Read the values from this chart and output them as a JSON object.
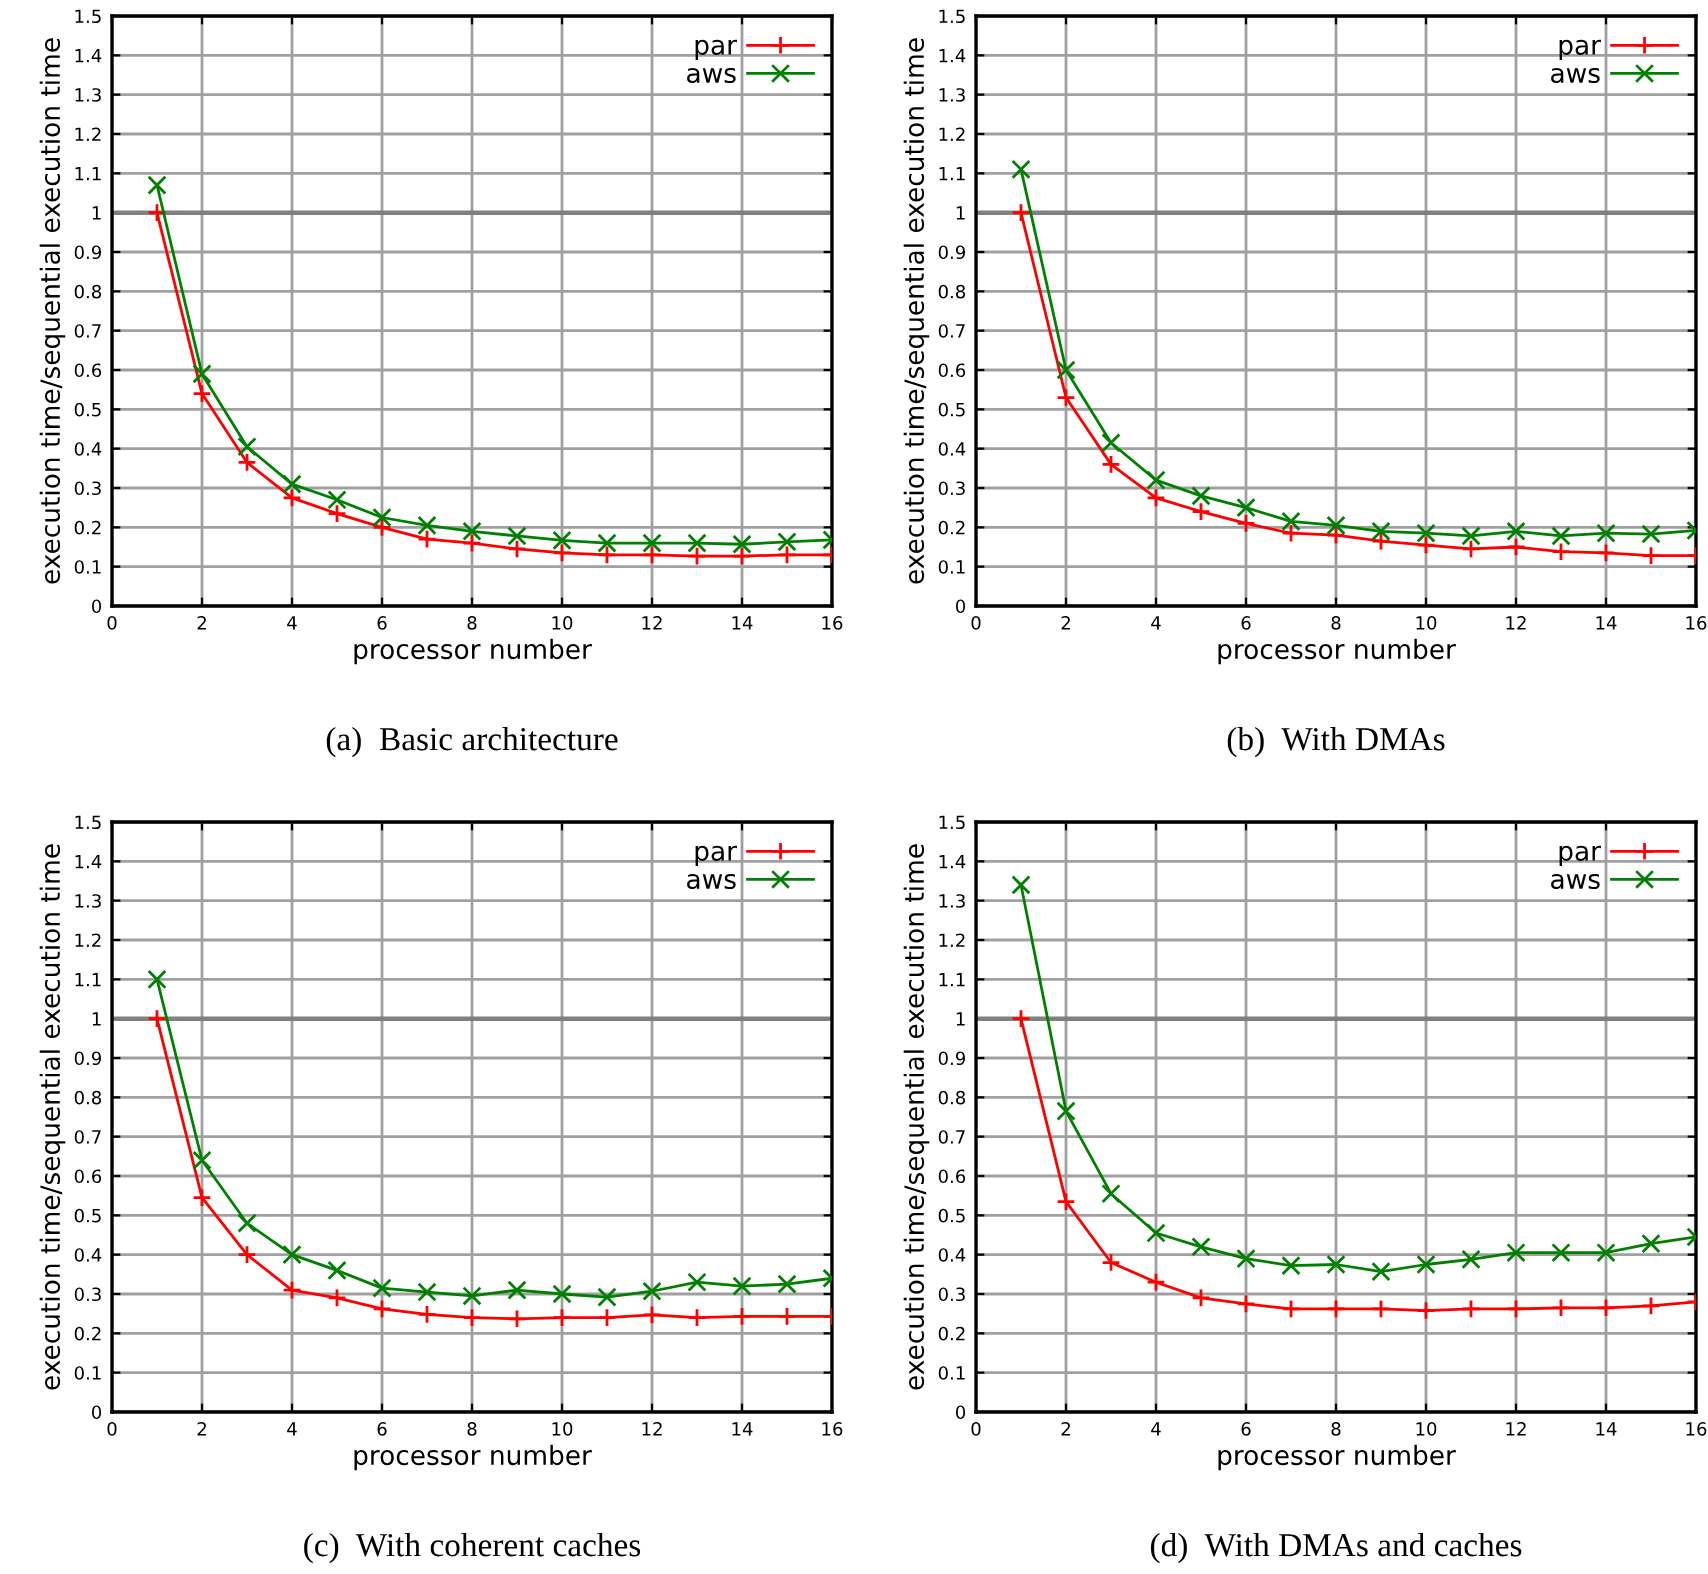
{
  "chart_data": [
    {
      "type": "line",
      "title": "(a)  Basic architecture",
      "xlabel": "processor number",
      "ylabel": "execution time/sequential execution time",
      "x": [
        1,
        2,
        3,
        4,
        5,
        6,
        7,
        8,
        9,
        10,
        11,
        12,
        13,
        14,
        15,
        16
      ],
      "series": [
        {
          "name": "par",
          "color": "#ff0000",
          "marker": "cross",
          "values": [
            1,
            0.54,
            0.365,
            0.275,
            0.235,
            0.2,
            0.17,
            0.16,
            0.145,
            0.135,
            0.13,
            0.13,
            0.127,
            0.127,
            0.13,
            0.13
          ]
        },
        {
          "name": "aws",
          "color": "#008000",
          "marker": "x",
          "values": [
            1.07,
            0.59,
            0.405,
            0.31,
            0.27,
            0.225,
            0.205,
            0.19,
            0.178,
            0.167,
            0.16,
            0.16,
            0.16,
            0.157,
            0.163,
            0.168
          ]
        }
      ],
      "xlim": [
        0,
        16
      ],
      "xticks": [
        0,
        2,
        4,
        6,
        8,
        10,
        12,
        14,
        16
      ],
      "ylim": [
        0,
        1.5
      ],
      "yticks": [
        0,
        0.1,
        0.2,
        0.3,
        0.4,
        0.5,
        0.6,
        0.7,
        0.8,
        0.9,
        1,
        1.1,
        1.2,
        1.3,
        1.4,
        1.5
      ],
      "ref_lines": [
        {
          "axis": "y",
          "value": 1,
          "color": "#808080"
        }
      ],
      "grid": true,
      "legend": "top right"
    },
    {
      "type": "line",
      "title": "(b)  With DMAs",
      "xlabel": "processor number",
      "ylabel": "execution time/sequential execution time",
      "x": [
        1,
        2,
        3,
        4,
        5,
        6,
        7,
        8,
        9,
        10,
        11,
        12,
        13,
        14,
        15,
        16
      ],
      "series": [
        {
          "name": "par",
          "color": "#ff0000",
          "marker": "cross",
          "values": [
            1,
            0.53,
            0.36,
            0.275,
            0.24,
            0.21,
            0.185,
            0.18,
            0.165,
            0.155,
            0.145,
            0.15,
            0.138,
            0.135,
            0.128,
            0.128
          ]
        },
        {
          "name": "aws",
          "color": "#008000",
          "marker": "x",
          "values": [
            1.11,
            0.6,
            0.415,
            0.32,
            0.28,
            0.25,
            0.215,
            0.205,
            0.19,
            0.185,
            0.178,
            0.19,
            0.178,
            0.185,
            0.183,
            0.192
          ]
        }
      ],
      "xlim": [
        0,
        16
      ],
      "xticks": [
        0,
        2,
        4,
        6,
        8,
        10,
        12,
        14,
        16
      ],
      "ylim": [
        0,
        1.5
      ],
      "yticks": [
        0,
        0.1,
        0.2,
        0.3,
        0.4,
        0.5,
        0.6,
        0.7,
        0.8,
        0.9,
        1,
        1.1,
        1.2,
        1.3,
        1.4,
        1.5
      ],
      "ref_lines": [
        {
          "axis": "y",
          "value": 1,
          "color": "#808080"
        }
      ],
      "grid": true,
      "legend": "top right"
    },
    {
      "type": "line",
      "title": "(c)  With coherent caches",
      "xlabel": "processor number",
      "ylabel": "execution time/sequential execution time",
      "x": [
        1,
        2,
        3,
        4,
        5,
        6,
        7,
        8,
        9,
        10,
        11,
        12,
        13,
        14,
        15,
        16
      ],
      "series": [
        {
          "name": "par",
          "color": "#ff0000",
          "marker": "cross",
          "values": [
            1,
            0.545,
            0.4,
            0.31,
            0.29,
            0.262,
            0.248,
            0.24,
            0.237,
            0.24,
            0.24,
            0.247,
            0.24,
            0.243,
            0.243,
            0.243
          ]
        },
        {
          "name": "aws",
          "color": "#008000",
          "marker": "x",
          "values": [
            1.1,
            0.64,
            0.48,
            0.4,
            0.36,
            0.315,
            0.305,
            0.295,
            0.31,
            0.3,
            0.292,
            0.307,
            0.33,
            0.32,
            0.325,
            0.34
          ]
        }
      ],
      "xlim": [
        0,
        16
      ],
      "xticks": [
        0,
        2,
        4,
        6,
        8,
        10,
        12,
        14,
        16
      ],
      "ylim": [
        0,
        1.5
      ],
      "yticks": [
        0,
        0.1,
        0.2,
        0.3,
        0.4,
        0.5,
        0.6,
        0.7,
        0.8,
        0.9,
        1,
        1.1,
        1.2,
        1.3,
        1.4,
        1.5
      ],
      "ref_lines": [
        {
          "axis": "y",
          "value": 1,
          "color": "#808080"
        }
      ],
      "grid": true,
      "legend": "top right"
    },
    {
      "type": "line",
      "title": "(d)  With DMAs and caches",
      "xlabel": "processor number",
      "ylabel": "execution time/sequential execution time",
      "x": [
        1,
        2,
        3,
        4,
        5,
        6,
        7,
        8,
        9,
        10,
        11,
        12,
        13,
        14,
        15,
        16
      ],
      "series": [
        {
          "name": "par",
          "color": "#ff0000",
          "marker": "cross",
          "values": [
            1,
            0.535,
            0.38,
            0.33,
            0.29,
            0.275,
            0.262,
            0.262,
            0.262,
            0.258,
            0.262,
            0.262,
            0.265,
            0.265,
            0.27,
            0.28
          ]
        },
        {
          "name": "aws",
          "color": "#008000",
          "marker": "x",
          "values": [
            1.34,
            0.765,
            0.555,
            0.455,
            0.42,
            0.39,
            0.372,
            0.375,
            0.357,
            0.375,
            0.388,
            0.405,
            0.405,
            0.405,
            0.428,
            0.445
          ]
        }
      ],
      "xlim": [
        0,
        16
      ],
      "xticks": [
        0,
        2,
        4,
        6,
        8,
        10,
        12,
        14,
        16
      ],
      "ylim": [
        0,
        1.5
      ],
      "yticks": [
        0,
        0.1,
        0.2,
        0.3,
        0.4,
        0.5,
        0.6,
        0.7,
        0.8,
        0.9,
        1,
        1.1,
        1.2,
        1.3,
        1.4,
        1.5
      ],
      "ref_lines": [
        {
          "axis": "y",
          "value": 1,
          "color": "#808080"
        }
      ],
      "grid": true,
      "legend": "top right"
    }
  ]
}
